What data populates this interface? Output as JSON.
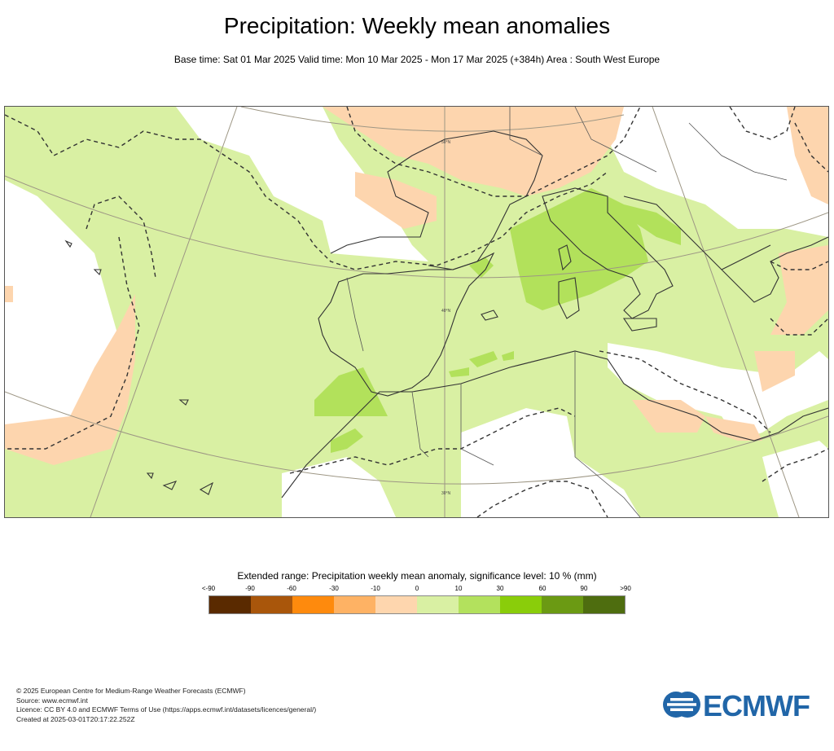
{
  "title": "Precipitation: Weekly mean anomalies",
  "subtitle": "Base time: Sat 01 Mar 2025 Valid time: Mon 10 Mar 2025 - Mon 17 Mar 2025 (+384h) Area : South West Europe",
  "map": {
    "lat_labels": [
      "50°N",
      "40°N",
      "30°N"
    ],
    "colors": {
      "ocean_bg": "#ffffff",
      "neutral_positive": "#d9f0a3",
      "positive_30": "#b2e15b",
      "negative_10": "#fdd5ae",
      "coast": "#333333",
      "grid": "#9d9684"
    }
  },
  "legend": {
    "title": "Extended range: Precipitation weekly mean anomaly, significance level: 10 % (mm)",
    "ticks": [
      "<-90",
      "-90",
      "-60",
      "-30",
      "-10",
      "0",
      "10",
      "30",
      "60",
      "90",
      ">90"
    ],
    "colors": [
      "#5a2a00",
      "#a9560b",
      "#fe8a0d",
      "#feb264",
      "#fed6ae",
      "#d9f0a3",
      "#b3e15d",
      "#8acd0a",
      "#6b9a13",
      "#4e6d0f"
    ]
  },
  "footer": {
    "copyright": "© 2025 European Centre for Medium-Range Weather Forecasts (ECMWF)",
    "source": "Source: www.ecmwf.int",
    "licence": "Licence: CC BY 4.0 and ECMWF Terms of Use (https://apps.ecmwf.int/datasets/licences/general/)",
    "created": "Created at 2025-03-01T20:17:22.252Z"
  },
  "logo": {
    "text": "ECMWF",
    "color": "#2166a8"
  }
}
